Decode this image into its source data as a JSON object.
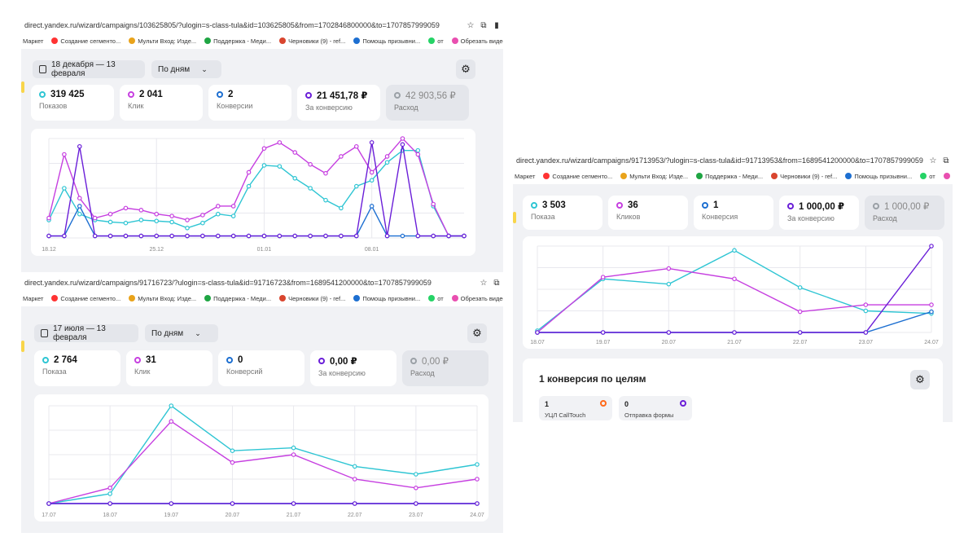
{
  "colors": {
    "cyan": "#2ec5d3",
    "magenta": "#c63fe0",
    "blue": "#1d6fd1",
    "purple": "#6a1ed8",
    "grid": "#e8e8ee"
  },
  "bookmarks": [
    {
      "label": "Маркет",
      "icon": "none",
      "color": ""
    },
    {
      "label": "Создание сегменто...",
      "icon": "yandex-icon",
      "color": "#f33"
    },
    {
      "label": "Мульти Вход: Изде...",
      "icon": "multi-icon",
      "color": "#e9a31b"
    },
    {
      "label": "Поддержка - Меди...",
      "icon": "support-icon",
      "color": "#1fa543"
    },
    {
      "label": "Черновики (9) - ref...",
      "icon": "gmail-icon",
      "color": "#d9452e"
    },
    {
      "label": "Помощь призывни...",
      "icon": "help-icon",
      "color": "#1d6fd1"
    },
    {
      "label": "от",
      "icon": "whatsapp-icon",
      "color": "#25d366"
    },
    {
      "label": "Обрезать видео он...",
      "icon": "video-icon",
      "color": "#e94fb0"
    }
  ],
  "screens": [
    {
      "url": "direct.yandex.ru/wizard/campaigns/103625805/?ulogin=s-class-tula&id=103625805&from=1702846800000&to=1707857999059",
      "date_range": "18 декабря — 13 февраля",
      "granularity": "По дням",
      "metrics": [
        {
          "value": "319 425",
          "label": "Показов",
          "color": "#2ec5d3",
          "active": true
        },
        {
          "value": "2 041",
          "label": "Клик",
          "color": "#c63fe0",
          "active": true
        },
        {
          "value": "2",
          "label": "Конверсии",
          "color": "#1d6fd1",
          "active": true
        },
        {
          "value": "21 451,78 ₽",
          "label": "За конверсию",
          "color": "#6a1ed8",
          "active": true
        },
        {
          "value": "42 903,56 ₽",
          "label": "Расход",
          "color": "#9aa0a6",
          "active": false
        }
      ],
      "chart_data": {
        "type": "line",
        "x": [
          "18.12",
          "19.12",
          "20.12",
          "21.12",
          "22.12",
          "23.12",
          "24.12",
          "25.12",
          "26.12",
          "27.12",
          "28.12",
          "29.12",
          "30.12",
          "31.12",
          "01.01",
          "02.01",
          "03.01",
          "04.01",
          "05.01",
          "06.01",
          "07.01",
          "08.01",
          "09.01",
          "10.01",
          "11.01",
          "12.01",
          "13.01",
          "14.01"
        ],
        "tick_labels": [
          {
            "index": 0,
            "label": "18.12"
          },
          {
            "index": 7,
            "label": "25.12"
          },
          {
            "index": 14,
            "label": "01.01"
          },
          {
            "index": 21,
            "label": "08.01"
          }
        ],
        "ylim": [
          0,
          100
        ],
        "series": [
          {
            "color": "#2ec5d3",
            "values": [
              18,
              50,
              24,
              18,
              16,
              15,
              18,
              17,
              16,
              10,
              15,
              24,
              22,
              52,
              73,
              72,
              60,
              50,
              38,
              30,
              52,
              58,
              76,
              88,
              88,
              32,
              2,
              2
            ]
          },
          {
            "color": "#c63fe0",
            "values": [
              20,
              84,
              40,
              20,
              24,
              30,
              28,
              24,
              22,
              18,
              23,
              32,
              32,
              66,
              90,
              96,
              86,
              74,
              65,
              82,
              92,
              66,
              82,
              100,
              84,
              34,
              2,
              2
            ]
          },
          {
            "color": "#1d6fd1",
            "values": [
              2,
              2,
              32,
              2,
              2,
              2,
              2,
              2,
              2,
              2,
              2,
              2,
              2,
              2,
              2,
              2,
              2,
              2,
              2,
              2,
              2,
              32,
              2,
              2,
              2,
              2,
              2,
              2
            ]
          },
          {
            "color": "#6a1ed8",
            "values": [
              2,
              2,
              92,
              2,
              2,
              2,
              2,
              2,
              2,
              2,
              2,
              2,
              2,
              2,
              2,
              2,
              2,
              2,
              2,
              2,
              2,
              96,
              2,
              94,
              2,
              2,
              2,
              2
            ]
          }
        ]
      }
    },
    {
      "url": "direct.yandex.ru/wizard/campaigns/91716723/?ulogin=s-class-tula&id=91716723&from=1689541200000&to=1707857999059",
      "date_range": "17 июля — 13 февраля",
      "granularity": "По дням",
      "metrics": [
        {
          "value": "2 764",
          "label": "Показа",
          "color": "#2ec5d3",
          "active": true
        },
        {
          "value": "31",
          "label": "Клик",
          "color": "#c63fe0",
          "active": true
        },
        {
          "value": "0",
          "label": "Конверсий",
          "color": "#1d6fd1",
          "active": true
        },
        {
          "value": "0,00 ₽",
          "label": "За конверсию",
          "color": "#6a1ed8",
          "active": true
        },
        {
          "value": "0,00 ₽",
          "label": "Расход",
          "color": "#9aa0a6",
          "active": false
        }
      ],
      "chart_data": {
        "type": "line",
        "x": [
          "17.07",
          "18.07",
          "19.07",
          "20.07",
          "21.07",
          "22.07",
          "23.07",
          "24.07"
        ],
        "ylim": [
          0,
          100
        ],
        "series": [
          {
            "color": "#2ec5d3",
            "values": [
              0,
              10,
              100,
              54,
              57,
              38,
              30,
              40
            ]
          },
          {
            "color": "#c63fe0",
            "values": [
              0,
              16,
              84,
              42,
              50,
              25,
              16,
              25
            ]
          },
          {
            "color": "#1d6fd1",
            "values": [
              0,
              0,
              0,
              0,
              0,
              0,
              0,
              0
            ]
          },
          {
            "color": "#6a1ed8",
            "values": [
              0,
              0,
              0,
              0,
              0,
              0,
              0,
              0
            ]
          }
        ]
      }
    },
    {
      "url": "direct.yandex.ru/wizard/campaigns/91713953/?ulogin=s-class-tula&id=91713953&from=1689541200000&to=1707857999059",
      "metrics": [
        {
          "value": "3 503",
          "label": "Показа",
          "color": "#2ec5d3",
          "active": true
        },
        {
          "value": "36",
          "label": "Кликов",
          "color": "#c63fe0",
          "active": true
        },
        {
          "value": "1",
          "label": "Конверсия",
          "color": "#1d6fd1",
          "active": true
        },
        {
          "value": "1 000,00 ₽",
          "label": "За конверсию",
          "color": "#6a1ed8",
          "active": true
        },
        {
          "value": "1 000,00 ₽",
          "label": "Расход",
          "color": "#9aa0a6",
          "active": false
        }
      ],
      "chart_data": {
        "type": "line",
        "x": [
          "18.07",
          "19.07",
          "20.07",
          "21.07",
          "22.07",
          "23.07",
          "24.07"
        ],
        "ylim": [
          0,
          100
        ],
        "series": [
          {
            "color": "#2ec5d3",
            "values": [
              2,
              62,
              56,
              95,
              52,
              25,
              22
            ]
          },
          {
            "color": "#c63fe0",
            "values": [
              0,
              64,
              74,
              62,
              24,
              32,
              32
            ]
          },
          {
            "color": "#1d6fd1",
            "values": [
              0,
              0,
              0,
              0,
              0,
              0,
              24
            ]
          },
          {
            "color": "#6a1ed8",
            "values": [
              0,
              0,
              0,
              0,
              0,
              0,
              100
            ]
          }
        ]
      },
      "goals": {
        "title": "1 конверсия по целям",
        "items": [
          {
            "count": "1",
            "name": "УЦЛ CallTouch",
            "color": "#ff6a1a"
          },
          {
            "count": "0",
            "name": "Отправка формы",
            "color": "#6a1ed8"
          }
        ]
      }
    }
  ]
}
